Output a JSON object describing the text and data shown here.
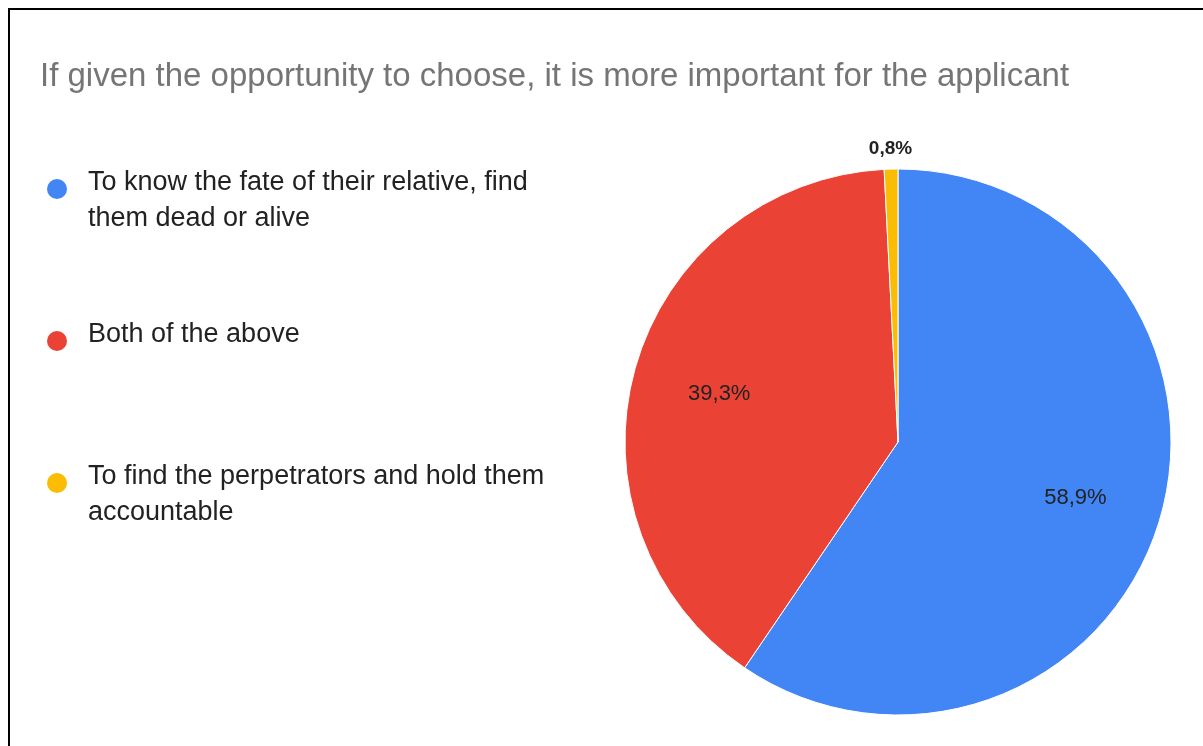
{
  "chart_data": {
    "type": "pie",
    "title": "If given the opportunity to choose, it is more important for the applicant",
    "categories": [
      "To know the fate of their relative, find them dead or alive",
      "Both of the above",
      "To find the perpetrators and hold them accountable"
    ],
    "values": [
      58.9,
      39.3,
      0.8
    ],
    "colors": [
      "#4285f4",
      "#ea4335",
      "#fbbc04"
    ],
    "value_labels": [
      "58,9%",
      "39,3%",
      "0,8%"
    ],
    "legend": "left"
  }
}
